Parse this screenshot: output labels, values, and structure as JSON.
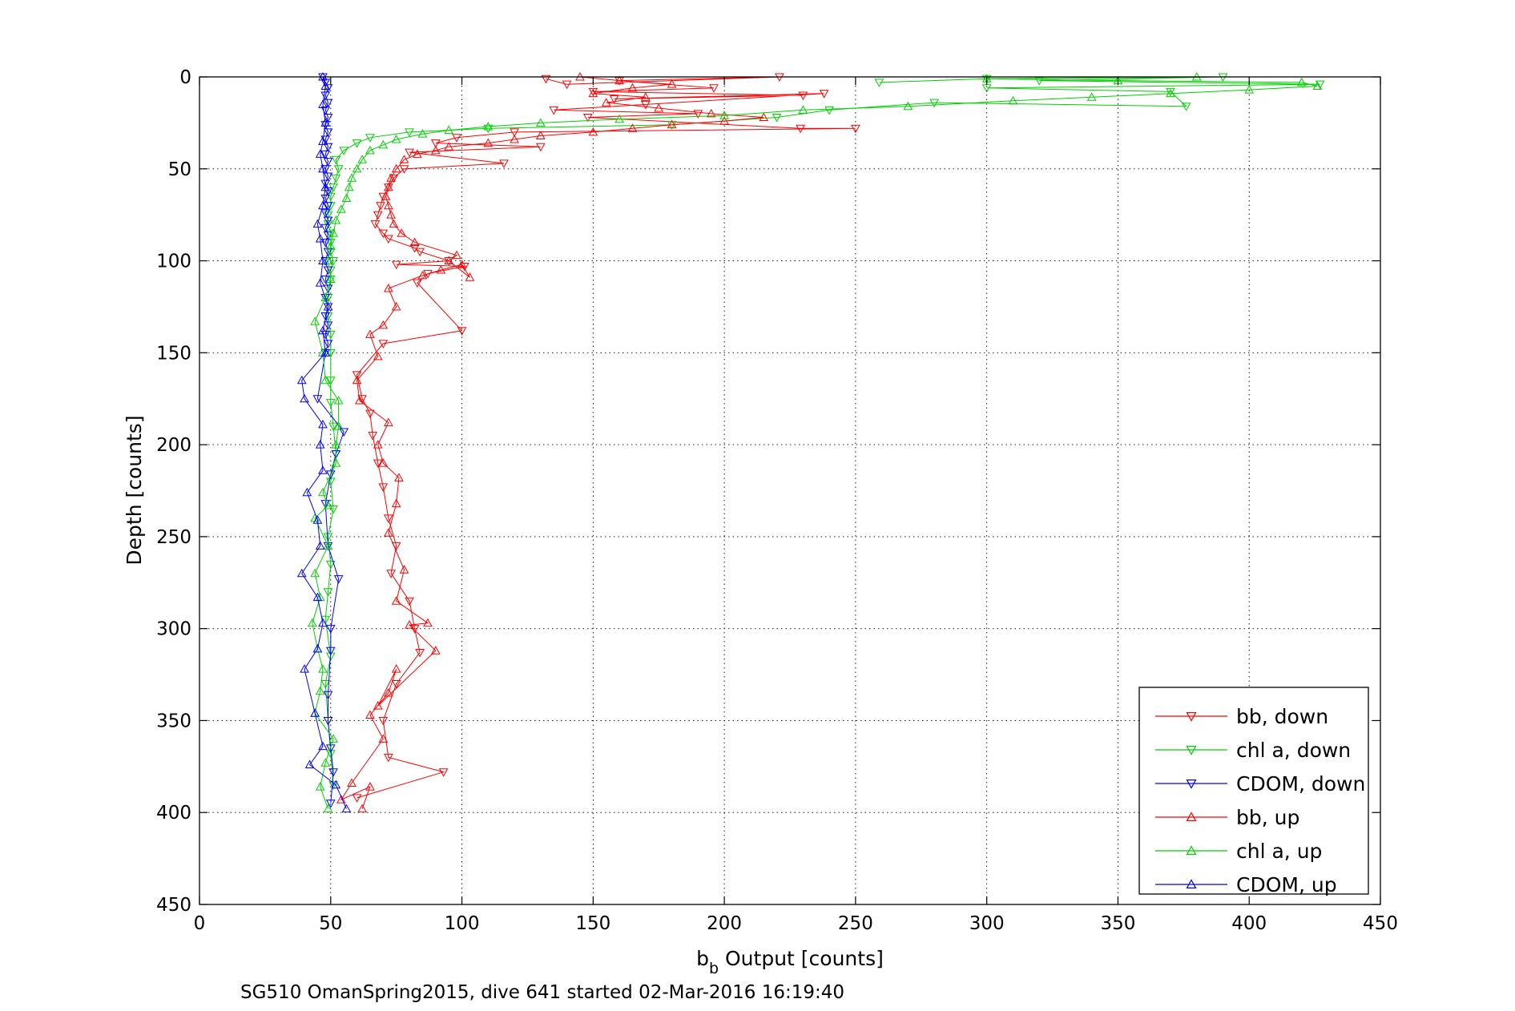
{
  "chart_data": {
    "type": "scatter",
    "title": "",
    "xlabel": "b_b Output [counts]",
    "xlabel_main": "b",
    "xlabel_sub": "b",
    "xlabel_rest": " Output [counts]",
    "ylabel": "Depth [counts]",
    "footer": "SG510 OmanSpring2015, dive 641 started 02-Mar-2016 16:19:40",
    "xlim": [
      0,
      450
    ],
    "ylim": [
      0,
      450
    ],
    "y_reversed": true,
    "grid": true,
    "legend_position": "bottom-right",
    "x_ticks": [
      0,
      50,
      100,
      150,
      200,
      250,
      300,
      350,
      400,
      450
    ],
    "y_ticks": [
      0,
      50,
      100,
      150,
      200,
      250,
      300,
      350,
      400,
      450
    ],
    "x_tick_labels": [
      "0",
      "50",
      "100",
      "150",
      "200",
      "250",
      "300",
      "350",
      "400",
      "450"
    ],
    "y_tick_labels": [
      "0",
      "50",
      "100",
      "150",
      "200",
      "250",
      "300",
      "350",
      "400",
      "450"
    ],
    "series": [
      {
        "name": "bb, down",
        "color": "#ff0000",
        "marker": "triangle-down",
        "connected": true,
        "points": [
          [
            132,
            1
          ],
          [
            140,
            4
          ],
          [
            221,
            0
          ],
          [
            160,
            2
          ],
          [
            196,
            6
          ],
          [
            150,
            8
          ],
          [
            230,
            10
          ],
          [
            158,
            12
          ],
          [
            238,
            9
          ],
          [
            170,
            15
          ],
          [
            135,
            18
          ],
          [
            190,
            20
          ],
          [
            148,
            22
          ],
          [
            229,
            28
          ],
          [
            250,
            28
          ],
          [
            120,
            30
          ],
          [
            98,
            33
          ],
          [
            90,
            36
          ],
          [
            130,
            38
          ],
          [
            80,
            41
          ],
          [
            116,
            47
          ],
          [
            78,
            50
          ],
          [
            74,
            55
          ],
          [
            72,
            60
          ],
          [
            70,
            65
          ],
          [
            69,
            70
          ],
          [
            68,
            75
          ],
          [
            67,
            80
          ],
          [
            70,
            85
          ],
          [
            72,
            88
          ],
          [
            82,
            93
          ],
          [
            84,
            95
          ],
          [
            95,
            100
          ],
          [
            75,
            102
          ],
          [
            101,
            103
          ],
          [
            87,
            107
          ],
          [
            83,
            112
          ],
          [
            100,
            138
          ],
          [
            70,
            145
          ],
          [
            60,
            162
          ],
          [
            62,
            175
          ],
          [
            65,
            183
          ],
          [
            66,
            195
          ],
          [
            68,
            210
          ],
          [
            70,
            223
          ],
          [
            72,
            240
          ],
          [
            75,
            255
          ],
          [
            73,
            270
          ],
          [
            80,
            285
          ],
          [
            82,
            300
          ],
          [
            84,
            313
          ],
          [
            75,
            330
          ],
          [
            70,
            350
          ],
          [
            72,
            370
          ],
          [
            93,
            378
          ],
          [
            60,
            392
          ]
        ]
      },
      {
        "name": "chl a, down",
        "color": "#00d000",
        "marker": "triangle-down",
        "connected": true,
        "points": [
          [
            259,
            3
          ],
          [
            300,
            1
          ],
          [
            390,
            0
          ],
          [
            320,
            2
          ],
          [
            427,
            4
          ],
          [
            300,
            6
          ],
          [
            370,
            8
          ],
          [
            376,
            16
          ],
          [
            280,
            14
          ],
          [
            240,
            18
          ],
          [
            220,
            22
          ],
          [
            180,
            26
          ],
          [
            110,
            28
          ],
          [
            80,
            30
          ],
          [
            65,
            33
          ],
          [
            60,
            36
          ],
          [
            55,
            40
          ],
          [
            52,
            45
          ],
          [
            53,
            50
          ],
          [
            52,
            55
          ],
          [
            51,
            60
          ],
          [
            50,
            65
          ],
          [
            50,
            70
          ],
          [
            49,
            75
          ],
          [
            49,
            80
          ],
          [
            50,
            85
          ],
          [
            50,
            90
          ],
          [
            50,
            95
          ],
          [
            51,
            100
          ],
          [
            50,
            105
          ],
          [
            50,
            110
          ],
          [
            49,
            120
          ],
          [
            49,
            130
          ],
          [
            50,
            140
          ],
          [
            50,
            150
          ],
          [
            50,
            165
          ],
          [
            50,
            177
          ],
          [
            51,
            190
          ],
          [
            52,
            205
          ],
          [
            50,
            220
          ],
          [
            51,
            235
          ],
          [
            49,
            250
          ],
          [
            50,
            265
          ],
          [
            49,
            280
          ],
          [
            48,
            295
          ],
          [
            50,
            315
          ],
          [
            48,
            330
          ],
          [
            49,
            350
          ],
          [
            50,
            368
          ],
          [
            51,
            385
          ]
        ]
      },
      {
        "name": "CDOM, down",
        "color": "#0000ff",
        "marker": "triangle-down",
        "connected": true,
        "points": [
          [
            47,
            0
          ],
          [
            48,
            3
          ],
          [
            49,
            6
          ],
          [
            48,
            10
          ],
          [
            49,
            14
          ],
          [
            48,
            18
          ],
          [
            49,
            22
          ],
          [
            48,
            26
          ],
          [
            49,
            30
          ],
          [
            48,
            34
          ],
          [
            49,
            38
          ],
          [
            48,
            42
          ],
          [
            49,
            46
          ],
          [
            48,
            50
          ],
          [
            49,
            54
          ],
          [
            48,
            58
          ],
          [
            49,
            62
          ],
          [
            48,
            66
          ],
          [
            49,
            70
          ],
          [
            48,
            74
          ],
          [
            49,
            78
          ],
          [
            48,
            82
          ],
          [
            49,
            86
          ],
          [
            48,
            90
          ],
          [
            49,
            95
          ],
          [
            48,
            100
          ],
          [
            49,
            105
          ],
          [
            48,
            110
          ],
          [
            49,
            115
          ],
          [
            48,
            120
          ],
          [
            49,
            125
          ],
          [
            48,
            130
          ],
          [
            49,
            135
          ],
          [
            48,
            140
          ],
          [
            49,
            145
          ],
          [
            48,
            150
          ],
          [
            45,
            175
          ],
          [
            55,
            193
          ],
          [
            52,
            205
          ],
          [
            50,
            216
          ],
          [
            48,
            232
          ],
          [
            49,
            255
          ],
          [
            53,
            273
          ],
          [
            50,
            300
          ],
          [
            50,
            312
          ],
          [
            49,
            336
          ],
          [
            49,
            350
          ],
          [
            50,
            365
          ],
          [
            51,
            378
          ],
          [
            50,
            395
          ]
        ]
      },
      {
        "name": "bb, up",
        "color": "#ff0000",
        "marker": "triangle-up",
        "connected": true,
        "points": [
          [
            62,
            398
          ],
          [
            65,
            386
          ],
          [
            54,
            393
          ],
          [
            58,
            384
          ],
          [
            70,
            360
          ],
          [
            65,
            347
          ],
          [
            72,
            335
          ],
          [
            75,
            322
          ],
          [
            68,
            342
          ],
          [
            90,
            312
          ],
          [
            80,
            298
          ],
          [
            87,
            297
          ],
          [
            75,
            285
          ],
          [
            78,
            268
          ],
          [
            72,
            248
          ],
          [
            75,
            232
          ],
          [
            76,
            218
          ],
          [
            70,
            210
          ],
          [
            68,
            200
          ],
          [
            72,
            188
          ],
          [
            61,
            176
          ],
          [
            60,
            165
          ],
          [
            68,
            152
          ],
          [
            65,
            140
          ],
          [
            70,
            135
          ],
          [
            75,
            125
          ],
          [
            72,
            115
          ],
          [
            85,
            108
          ],
          [
            92,
            105
          ],
          [
            100,
            102
          ],
          [
            103,
            109
          ],
          [
            95,
            100
          ],
          [
            98,
            97
          ],
          [
            82,
            90
          ],
          [
            77,
            85
          ],
          [
            74,
            80
          ],
          [
            73,
            75
          ],
          [
            72,
            70
          ],
          [
            71,
            65
          ],
          [
            72,
            60
          ],
          [
            73,
            55
          ],
          [
            75,
            50
          ],
          [
            78,
            45
          ],
          [
            83,
            42
          ],
          [
            90,
            40
          ],
          [
            95,
            38
          ],
          [
            110,
            36
          ],
          [
            120,
            34
          ],
          [
            130,
            32
          ],
          [
            150,
            30
          ],
          [
            165,
            28
          ],
          [
            180,
            26
          ],
          [
            200,
            24
          ],
          [
            215,
            22
          ],
          [
            195,
            20
          ],
          [
            175,
            17
          ],
          [
            155,
            14
          ],
          [
            170,
            11
          ],
          [
            150,
            9
          ],
          [
            165,
            6
          ],
          [
            180,
            4
          ],
          [
            160,
            2
          ],
          [
            145,
            0
          ]
        ]
      },
      {
        "name": "chl a, up",
        "color": "#00d000",
        "marker": "triangle-up",
        "connected": true,
        "points": [
          [
            49,
            398
          ],
          [
            46,
            386
          ],
          [
            48,
            373
          ],
          [
            51,
            360
          ],
          [
            44,
            346
          ],
          [
            46,
            334
          ],
          [
            47,
            322
          ],
          [
            45,
            311
          ],
          [
            43,
            297
          ],
          [
            46,
            283
          ],
          [
            44,
            270
          ],
          [
            49,
            255
          ],
          [
            44,
            240
          ],
          [
            49,
            233
          ],
          [
            47,
            226
          ],
          [
            52,
            210
          ],
          [
            52,
            200
          ],
          [
            53,
            190
          ],
          [
            53,
            176
          ],
          [
            48,
            165
          ],
          [
            47,
            150
          ],
          [
            44,
            133
          ],
          [
            48,
            120
          ],
          [
            50,
            110
          ],
          [
            49,
            100
          ],
          [
            50,
            92
          ],
          [
            51,
            85
          ],
          [
            52,
            78
          ],
          [
            54,
            72
          ],
          [
            56,
            66
          ],
          [
            57,
            60
          ],
          [
            58,
            55
          ],
          [
            60,
            50
          ],
          [
            62,
            45
          ],
          [
            65,
            40
          ],
          [
            70,
            37
          ],
          [
            75,
            34
          ],
          [
            85,
            31
          ],
          [
            95,
            29
          ],
          [
            110,
            27
          ],
          [
            130,
            25
          ],
          [
            160,
            23
          ],
          [
            200,
            21
          ],
          [
            230,
            18
          ],
          [
            270,
            16
          ],
          [
            310,
            13
          ],
          [
            340,
            11
          ],
          [
            370,
            9
          ],
          [
            400,
            7
          ],
          [
            426,
            5
          ],
          [
            420,
            3
          ],
          [
            350,
            2
          ],
          [
            300,
            1
          ],
          [
            380,
            0
          ]
        ]
      },
      {
        "name": "CDOM, up",
        "color": "#0000ff",
        "marker": "triangle-up",
        "connected": true,
        "points": [
          [
            56,
            398
          ],
          [
            52,
            385
          ],
          [
            42,
            374
          ],
          [
            47,
            364
          ],
          [
            44,
            346
          ],
          [
            40,
            322
          ],
          [
            45,
            311
          ],
          [
            47,
            297
          ],
          [
            45,
            283
          ],
          [
            39,
            270
          ],
          [
            46,
            255
          ],
          [
            45,
            241
          ],
          [
            41,
            226
          ],
          [
            47,
            214
          ],
          [
            46,
            200
          ],
          [
            47,
            189
          ],
          [
            40,
            175
          ],
          [
            39,
            165
          ],
          [
            48,
            150
          ],
          [
            47,
            138
          ],
          [
            49,
            125
          ],
          [
            46,
            112
          ],
          [
            47,
            100
          ],
          [
            46,
            88
          ],
          [
            45,
            80
          ],
          [
            47,
            70
          ],
          [
            48,
            60
          ],
          [
            47,
            50
          ],
          [
            46,
            42
          ],
          [
            47,
            35
          ],
          [
            48,
            25
          ],
          [
            47,
            15
          ],
          [
            48,
            5
          ],
          [
            47,
            0
          ]
        ]
      }
    ]
  }
}
